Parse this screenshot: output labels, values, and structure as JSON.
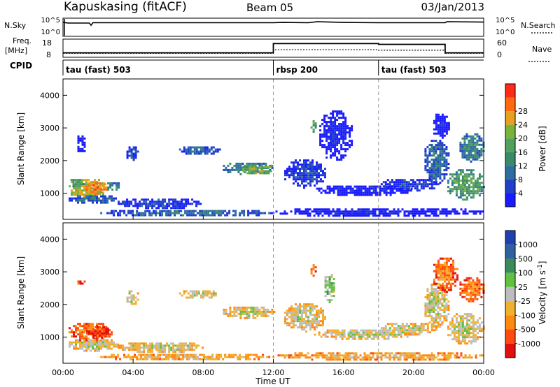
{
  "header": {
    "station": "Kapuskasing (fitACF)",
    "beam": "Beam 05",
    "date": "03/Jan/2013"
  },
  "colors": {
    "scale_power": [
      "#1a1aff",
      "#2040c8",
      "#2d6e9e",
      "#3a8a6a",
      "#52a060",
      "#7ab33c",
      "#e8a020",
      "#ff6a10",
      "#ff2a1a"
    ],
    "scale_velocity": [
      "#e01010",
      "#ff4a10",
      "#ff8a10",
      "#f0b030",
      "#bdbdbd",
      "#60c040",
      "#3a8a5a",
      "#3060a0",
      "#2040b0"
    ],
    "frame": "#000000",
    "guide": "#9a9a9a",
    "noise_line": "#000000"
  },
  "chart_data": [
    {
      "type": "line",
      "name": "param-strip",
      "left_label_top": "N.Sky",
      "left_label_bottom": "Freq.",
      "left_unit": "[MHz]",
      "left_ticks_top": [
        "10^5",
        "10^0"
      ],
      "left_ticks_bottom": [
        "18",
        "8"
      ],
      "right_ticks_top": [
        "10^5",
        "10^0"
      ],
      "right_ticks_bottom": [
        "60",
        "0"
      ],
      "right_label_top": "N.Search",
      "right_label_bottom": "Nave",
      "cpid_label": "CPID",
      "cpid_segments": [
        {
          "start": 0,
          "label": "tau (fast) 503"
        },
        {
          "start": 12,
          "label": "rbsp 200"
        },
        {
          "start": 18,
          "label": "tau (fast) 503"
        }
      ],
      "noise_sky": [
        [
          0,
          3.9
        ],
        [
          0.3,
          3.7
        ],
        [
          1.5,
          3.7
        ],
        [
          1.6,
          3.0
        ],
        [
          1.7,
          3.8
        ],
        [
          6,
          3.8
        ],
        [
          12,
          3.8
        ],
        [
          12.5,
          3.9
        ],
        [
          14,
          3.8
        ],
        [
          14.5,
          4.1
        ],
        [
          16,
          3.9
        ],
        [
          18,
          3.8
        ],
        [
          18.3,
          3.8
        ],
        [
          21.8,
          3.8
        ],
        [
          21.9,
          4.1
        ],
        [
          24,
          4.0
        ]
      ],
      "freq_mhz": [
        [
          0,
          10.0
        ],
        [
          12,
          10.0
        ],
        [
          12,
          16.0
        ],
        [
          18,
          16.0
        ],
        [
          18,
          15.5
        ],
        [
          21.8,
          15.5
        ],
        [
          21.8,
          10.0
        ],
        [
          24,
          10.0
        ]
      ],
      "nave": [
        [
          0,
          10
        ],
        [
          12,
          10
        ],
        [
          12,
          24
        ],
        [
          18,
          24
        ],
        [
          18,
          22
        ],
        [
          21.8,
          22
        ],
        [
          21.8,
          10
        ],
        [
          24,
          10
        ]
      ]
    },
    {
      "type": "heatmap",
      "name": "power",
      "xlabel": "",
      "ylabel": "Slant Range [km]",
      "x_range_hours": [
        0,
        24
      ],
      "ylim": [
        200,
        4500
      ],
      "yticks": [
        1000,
        2000,
        3000,
        4000
      ],
      "colorbar_label": "Power [dB]",
      "colorbar_ticks": [
        "4",
        "8",
        "12",
        "16",
        "20",
        "24",
        "28"
      ],
      "guide_lines_hours": [
        12,
        18
      ],
      "echoes": [
        {
          "t0": 0.2,
          "t1": 2.5,
          "r0": 850,
          "r1": 1500,
          "level": 6
        },
        {
          "t0": 0.3,
          "t1": 1.2,
          "r0": 1200,
          "r1": 1500,
          "level": 4
        },
        {
          "t0": 1.2,
          "t1": 2.5,
          "r0": 1000,
          "r1": 1400,
          "level": 7
        },
        {
          "t0": 0.2,
          "t1": 3.0,
          "r0": 700,
          "r1": 1000,
          "level": 2
        },
        {
          "t0": 2.4,
          "t1": 3.2,
          "r0": 1100,
          "r1": 1400,
          "level": 3
        },
        {
          "t0": 0.7,
          "t1": 1.3,
          "r0": 2200,
          "r1": 2900,
          "level": 0
        },
        {
          "t0": 3.5,
          "t1": 4.3,
          "r0": 2000,
          "r1": 2500,
          "level": 1
        },
        {
          "t0": 6.5,
          "t1": 9.0,
          "r0": 2200,
          "r1": 2500,
          "level": 2
        },
        {
          "t0": 9.0,
          "t1": 12.0,
          "r0": 1600,
          "r1": 2000,
          "level": 3
        },
        {
          "t0": 10.0,
          "t1": 12.0,
          "r0": 1600,
          "r1": 1900,
          "level": 5
        },
        {
          "t0": 2.0,
          "t1": 12.0,
          "r0": 300,
          "r1": 550,
          "level": 2
        },
        {
          "t0": 3.0,
          "t1": 8.0,
          "r0": 550,
          "r1": 900,
          "level": 1
        },
        {
          "t0": 12.5,
          "t1": 15.0,
          "r0": 1200,
          "r1": 2100,
          "level": 1
        },
        {
          "t0": 14.0,
          "t1": 14.4,
          "r0": 2900,
          "r1": 3300,
          "level": 4
        },
        {
          "t0": 14.5,
          "t1": 16.5,
          "r0": 2000,
          "r1": 3600,
          "level": 0
        },
        {
          "t0": 14.2,
          "t1": 20.0,
          "r0": 950,
          "r1": 1300,
          "level": 0
        },
        {
          "t0": 18.0,
          "t1": 21.5,
          "r0": 1100,
          "r1": 1500,
          "level": 1
        },
        {
          "t0": 20.5,
          "t1": 22.0,
          "r0": 1300,
          "r1": 2700,
          "level": 2
        },
        {
          "t0": 21.0,
          "t1": 22.0,
          "r0": 2700,
          "r1": 3500,
          "level": 0
        },
        {
          "t0": 21.8,
          "t1": 24.0,
          "r0": 800,
          "r1": 1800,
          "level": 4
        },
        {
          "t0": 22.5,
          "t1": 24.0,
          "r0": 2000,
          "r1": 2900,
          "level": 3
        },
        {
          "t0": 12.0,
          "t1": 24.0,
          "r0": 300,
          "r1": 600,
          "level": 0
        }
      ]
    },
    {
      "type": "heatmap",
      "name": "velocity",
      "xlabel": "Time UT",
      "ylabel": "Slant Range [km]",
      "x_range_hours": [
        0,
        24
      ],
      "xticks": [
        "00:00",
        "04:00",
        "08:00",
        "12:00",
        "16:00",
        "20:00",
        "00:00"
      ],
      "ylim": [
        200,
        4500
      ],
      "yticks": [
        1000,
        2000,
        3000,
        4000
      ],
      "colorbar_label": "Velocity [m s^-1]",
      "colorbar_ticks": [
        "1000",
        "500",
        "100",
        "25",
        "-25",
        "-100",
        "-500",
        "-1000"
      ],
      "guide_lines_hours": [
        12,
        18
      ],
      "echoes": [
        {
          "t0": 0.2,
          "t1": 2.8,
          "r0": 850,
          "r1": 1500,
          "level": 2
        },
        {
          "t0": 1.2,
          "t1": 2.6,
          "r0": 1000,
          "r1": 1400,
          "level": 1
        },
        {
          "t0": 0.2,
          "t1": 3.2,
          "r0": 600,
          "r1": 1000,
          "level": 4
        },
        {
          "t0": 0.7,
          "t1": 1.2,
          "r0": 2600,
          "r1": 2800,
          "level": 1
        },
        {
          "t0": 3.5,
          "t1": 4.3,
          "r0": 2000,
          "r1": 2500,
          "level": 4
        },
        {
          "t0": 6.5,
          "t1": 9.0,
          "r0": 2200,
          "r1": 2500,
          "level": 4
        },
        {
          "t0": 9.0,
          "t1": 12.0,
          "r0": 1600,
          "r1": 2000,
          "level": 4
        },
        {
          "t0": 2.0,
          "t1": 12.0,
          "r0": 300,
          "r1": 550,
          "level": 3
        },
        {
          "t0": 3.0,
          "t1": 8.0,
          "r0": 550,
          "r1": 900,
          "level": 4
        },
        {
          "t0": 12.5,
          "t1": 15.0,
          "r0": 1200,
          "r1": 2100,
          "level": 4
        },
        {
          "t0": 14.0,
          "t1": 14.4,
          "r0": 2900,
          "r1": 3300,
          "level": 2
        },
        {
          "t0": 14.8,
          "t1": 15.5,
          "r0": 2100,
          "r1": 3000,
          "level": 5
        },
        {
          "t0": 14.2,
          "t1": 20.0,
          "r0": 950,
          "r1": 1300,
          "level": 4
        },
        {
          "t0": 18.0,
          "t1": 21.5,
          "r0": 1100,
          "r1": 1500,
          "level": 4
        },
        {
          "t0": 20.5,
          "t1": 22.0,
          "r0": 1300,
          "r1": 2700,
          "level": 4
        },
        {
          "t0": 21.0,
          "t1": 22.5,
          "r0": 2400,
          "r1": 3500,
          "level": 2
        },
        {
          "t0": 21.8,
          "t1": 24.0,
          "r0": 800,
          "r1": 1800,
          "level": 4
        },
        {
          "t0": 22.5,
          "t1": 24.0,
          "r0": 2100,
          "r1": 2900,
          "level": 2
        },
        {
          "t0": 12.0,
          "t1": 24.0,
          "r0": 300,
          "r1": 600,
          "level": 3
        }
      ]
    }
  ]
}
